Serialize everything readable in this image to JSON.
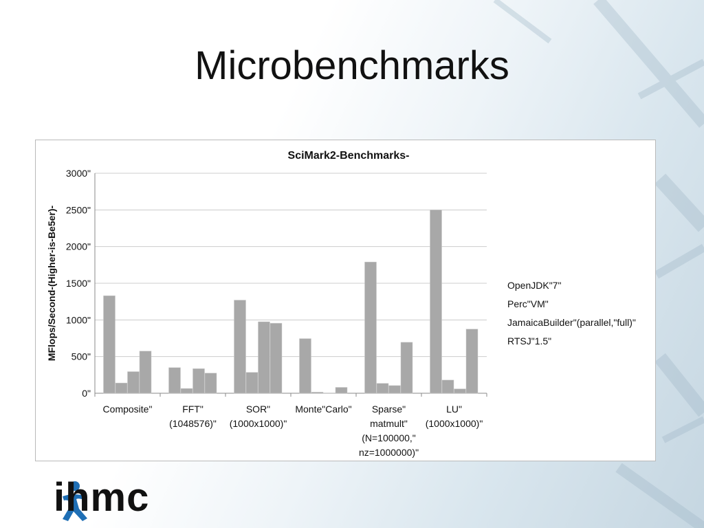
{
  "slide": {
    "title": "Microbenchmarks",
    "logo_text": "ihmc",
    "logo_icon": "running-figure-icon"
  },
  "colors": {
    "bar": "#a8a8a8",
    "bar_edge": "#c9c9c9",
    "gridline": "#cccccc",
    "axis": "#888888",
    "logo_blue": "#1f6fb5"
  },
  "chart_data": {
    "type": "bar",
    "title": "SciMark2-Benchmarks-",
    "ylabel": "MFlops/Second-(Higher-is-Be5er)-",
    "xlabel": "",
    "ylim": [
      0,
      3000
    ],
    "yticks": [
      {
        "value": 0,
        "label": "0\""
      },
      {
        "value": 500,
        "label": "500\""
      },
      {
        "value": 1000,
        "label": "1000\""
      },
      {
        "value": 1500,
        "label": "1500\""
      },
      {
        "value": 2000,
        "label": "2000\""
      },
      {
        "value": 2500,
        "label": "2500\""
      },
      {
        "value": 3000,
        "label": "3000\""
      }
    ],
    "grid": true,
    "legend_position": "right",
    "categories": [
      [
        "Composite\""
      ],
      [
        "FFT\"",
        "(1048576)\""
      ],
      [
        "SOR\"",
        "(1000x1000)\""
      ],
      [
        "Monte\"Carlo\""
      ],
      [
        "Sparse\"",
        "matmult\"",
        "(N=100000,\"",
        "nz=1000000)\""
      ],
      [
        "LU\"",
        "(1000x1000)\""
      ]
    ],
    "series": [
      {
        "name": "OpenJDK\"7\"",
        "values": [
          1330,
          350,
          1270,
          745,
          1790,
          2500
        ]
      },
      {
        "name": "Perc\"VM\"",
        "values": [
          140,
          65,
          285,
          15,
          135,
          180
        ]
      },
      {
        "name": "JamaicaBuilder\"(parallel,\"full)\"",
        "values": [
          295,
          335,
          975,
          5,
          105,
          60
        ]
      },
      {
        "name": "RTSJ\"1.5\"",
        "values": [
          575,
          275,
          955,
          80,
          695,
          875
        ]
      }
    ]
  }
}
